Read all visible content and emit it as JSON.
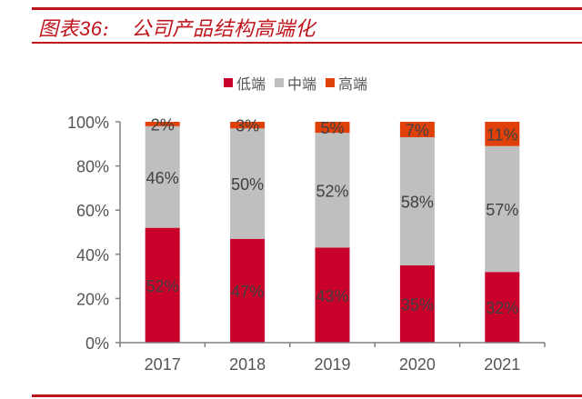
{
  "header": {
    "figure_label": "图表",
    "figure_number": "36",
    "figure_colon": ":",
    "title": "公司产品结构高端化"
  },
  "colors": {
    "brand_red": "#c0141c",
    "low_end": "#c8002a",
    "mid_end": "#bfbfbf",
    "high_end": "#e0400a",
    "axis": "#808080"
  },
  "chart_data": {
    "type": "bar",
    "stacked": true,
    "title": "公司产品结构高端化",
    "xlabel": "",
    "ylabel": "",
    "categories": [
      "2017",
      "2018",
      "2019",
      "2020",
      "2021"
    ],
    "series": [
      {
        "name": "低端",
        "color": "#c8002a",
        "values": [
          52,
          47,
          43,
          35,
          32
        ],
        "labels": [
          "52%",
          "47%",
          "43%",
          "35%",
          "32%"
        ]
      },
      {
        "name": "中端",
        "color": "#bfbfbf",
        "values": [
          46,
          50,
          52,
          58,
          57
        ],
        "labels": [
          "46%",
          "50%",
          "52%",
          "58%",
          "57%"
        ]
      },
      {
        "name": "高端",
        "color": "#e0400a",
        "values": [
          2,
          3,
          5,
          7,
          11
        ],
        "labels": [
          "2%",
          "3%",
          "5%",
          "7%",
          "11%"
        ]
      }
    ],
    "ylim": [
      0,
      100
    ],
    "yticks": [
      0,
      20,
      40,
      60,
      80,
      100
    ],
    "ytick_labels": [
      "0%",
      "20%",
      "40%",
      "60%",
      "80%",
      "100%"
    ],
    "grid": false,
    "legend_position": "top-center"
  }
}
